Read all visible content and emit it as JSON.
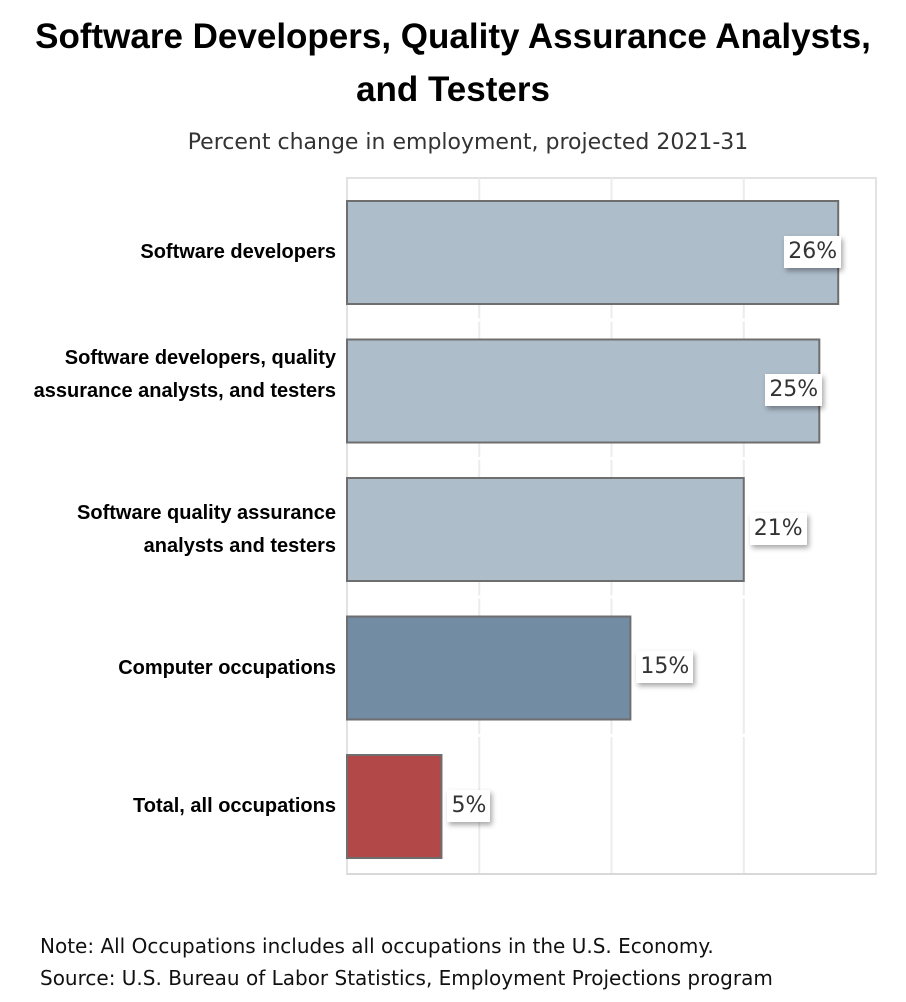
{
  "chart_data": {
    "type": "bar",
    "orientation": "horizontal",
    "title": "Software Developers, Quality Assurance Analysts, and Testers",
    "subtitle": "Percent change in employment, projected 2021-31",
    "categories": [
      "Software developers",
      "Software developers, quality assurance analysts, and testers",
      "Software quality assurance analysts and testers",
      "Computer occupations",
      "Total, all occupations"
    ],
    "values": [
      26,
      25,
      21,
      15,
      5
    ],
    "value_labels": [
      "26%",
      "25%",
      "21%",
      "15%",
      "5%"
    ],
    "colors": [
      "#aebdca",
      "#aebdca",
      "#aebdca",
      "#718ca3",
      "#b34848"
    ],
    "xlim": [
      0,
      28
    ],
    "grid": true,
    "xlabel": "",
    "ylabel": ""
  },
  "footer": {
    "note": "Note: All Occupations includes all occupations in the U.S. Economy.",
    "source": "Source: U.S. Bureau of Labor Statistics, Employment Projections program"
  }
}
